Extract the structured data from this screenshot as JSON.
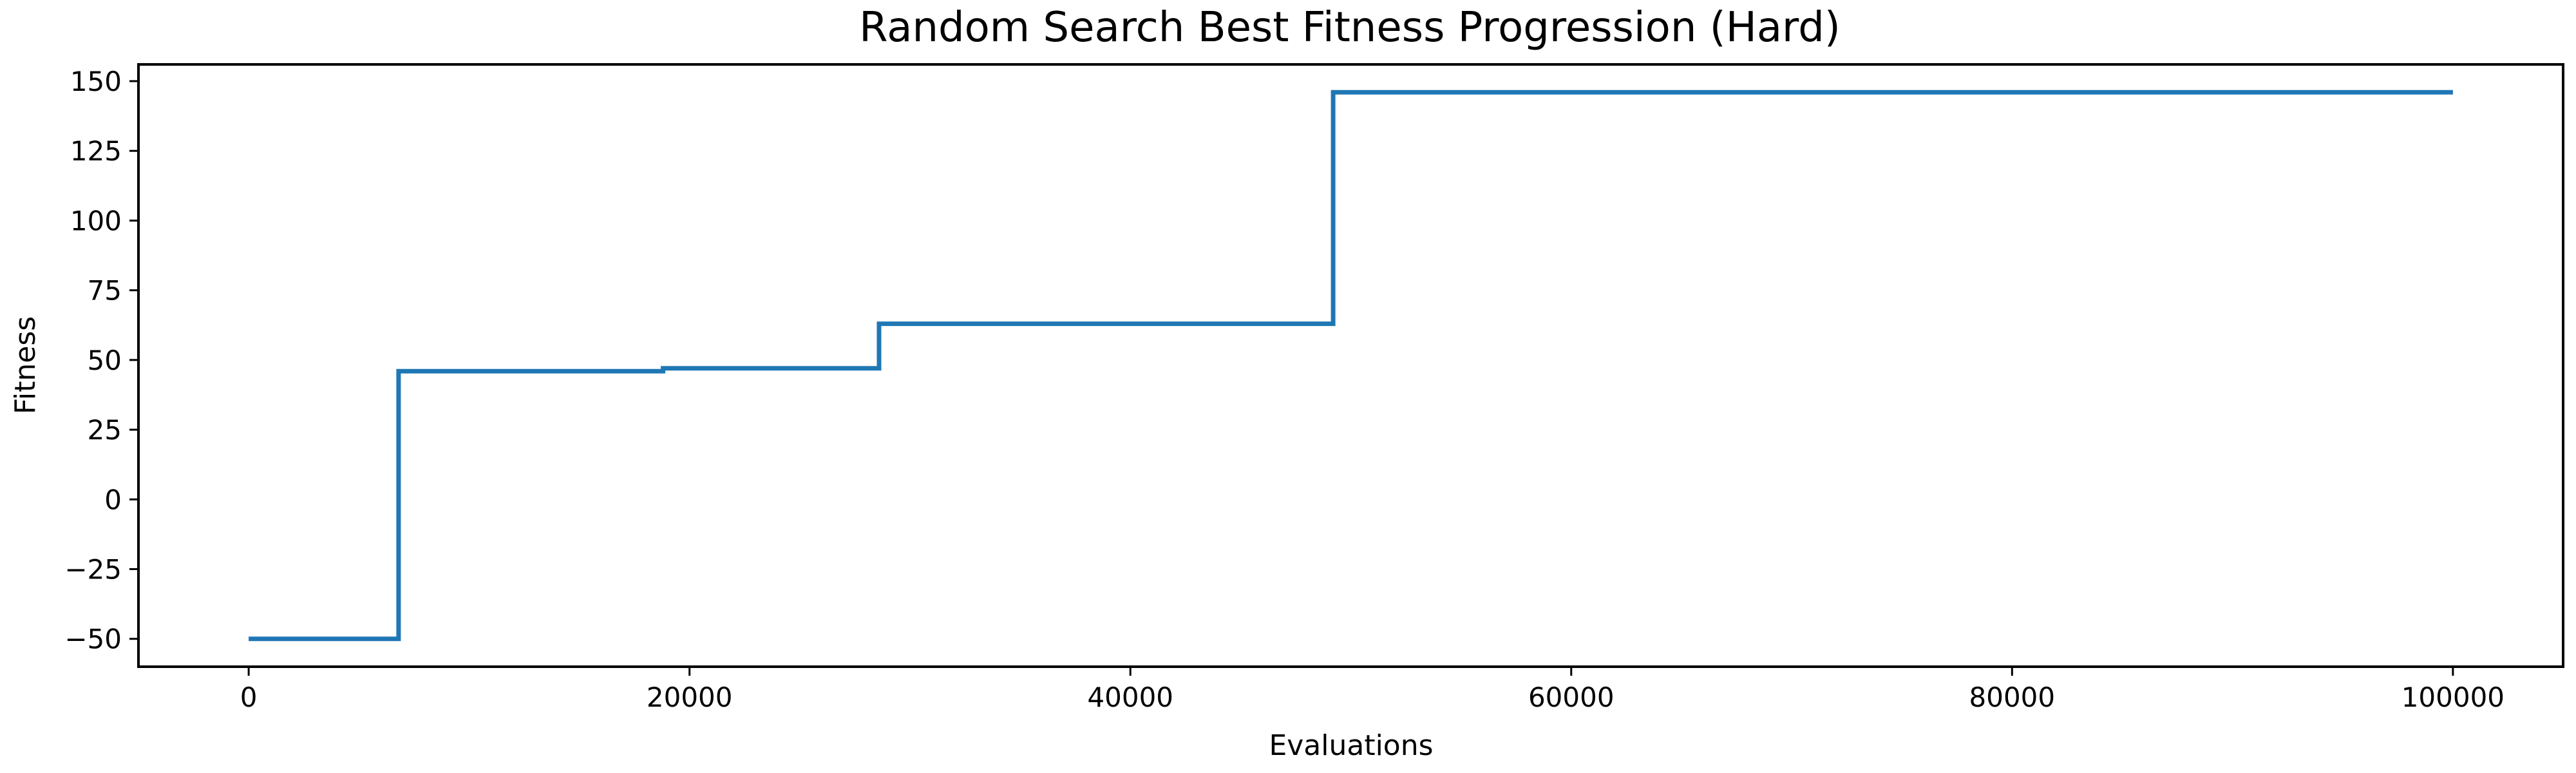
{
  "chart_data": {
    "type": "line",
    "step": true,
    "title": "Random Search Best Fitness Progression (Hard)",
    "xlabel": "Evaluations",
    "ylabel": "Fitness",
    "xlim": [
      -5000,
      105000
    ],
    "ylim": [
      -60,
      156
    ],
    "xticks": [
      0,
      20000,
      40000,
      60000,
      80000,
      100000
    ],
    "yticks": [
      -50,
      -25,
      0,
      25,
      50,
      75,
      100,
      125,
      150
    ],
    "ytick_labels": [
      "−50",
      "−25",
      "0",
      "25",
      "50",
      "75",
      "100",
      "125",
      "150"
    ],
    "grid": false,
    "series": [
      {
        "color": "#1f77b4",
        "x": [
          0,
          6800,
          18800,
          28600,
          49200,
          100000
        ],
        "y": [
          -50,
          46,
          47,
          63,
          146,
          146
        ]
      }
    ]
  }
}
